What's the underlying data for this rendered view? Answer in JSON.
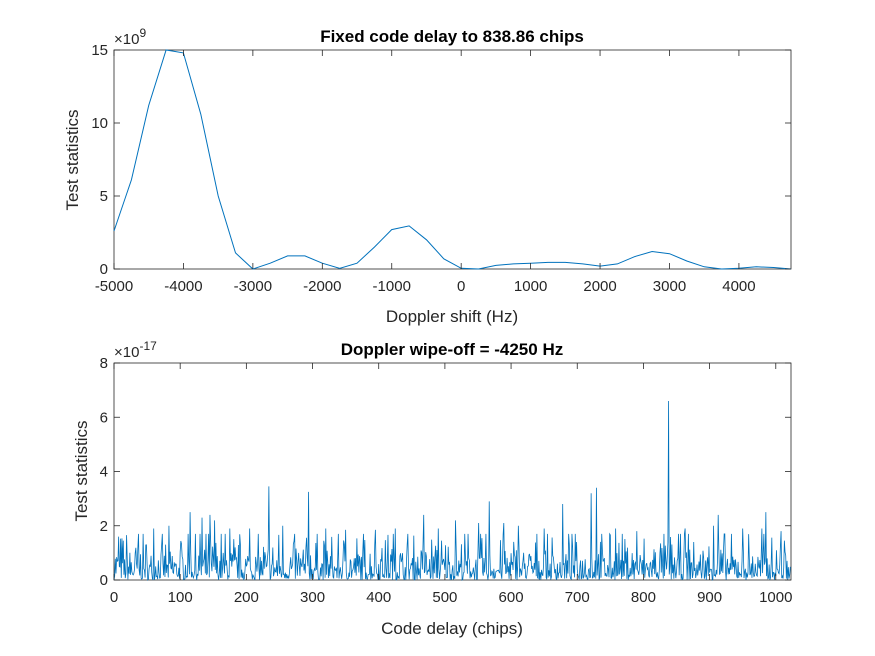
{
  "chart_data": [
    {
      "type": "line",
      "title": "Fixed code delay to 838.86 chips",
      "xlabel": "Doppler shift (Hz)",
      "ylabel": "Test statistics",
      "xlim": [
        -5000,
        4750
      ],
      "ylim": [
        0,
        15
      ],
      "y_exponent_base": "×10",
      "y_exponent": "9",
      "xticks": [
        -5000,
        -4000,
        -3000,
        -2000,
        -1000,
        0,
        1000,
        2000,
        3000,
        4000
      ],
      "yticks": [
        0,
        5,
        10,
        15
      ],
      "grid": false,
      "color": "#0072BD",
      "series": [
        {
          "x": [
            -5000,
            -4750,
            -4500,
            -4250,
            -4000,
            -3750,
            -3500,
            -3250,
            -3000,
            -2750,
            -2500,
            -2250,
            -2000,
            -1750,
            -1500,
            -1250,
            -1000,
            -750,
            -500,
            -250,
            0,
            250,
            500,
            750,
            1000,
            1250,
            1500,
            1750,
            2000,
            2250,
            2500,
            2750,
            3000,
            3250,
            3500,
            3750,
            4000,
            4250,
            4500,
            4750
          ],
          "values": [
            2.6,
            6.1,
            11.2,
            15.1,
            14.8,
            10.6,
            5.0,
            1.1,
            0.0,
            0.4,
            0.9,
            0.9,
            0.4,
            0.05,
            0.4,
            1.5,
            2.7,
            2.95,
            2.0,
            0.7,
            0.05,
            0.0,
            0.25,
            0.35,
            0.4,
            0.45,
            0.45,
            0.35,
            0.2,
            0.35,
            0.85,
            1.2,
            1.05,
            0.55,
            0.15,
            0.0,
            0.05,
            0.15,
            0.1,
            0.0
          ]
        }
      ]
    },
    {
      "type": "line",
      "title": "Doppler wipe-off = -4250 Hz",
      "xlabel": "Code delay (chips)",
      "ylabel": "Test statistics",
      "xlim": [
        0,
        1023
      ],
      "ylim": [
        0,
        8
      ],
      "y_exponent_base": "×10",
      "y_exponent": "-17",
      "xticks": [
        0,
        100,
        200,
        300,
        400,
        500,
        600,
        700,
        800,
        900,
        1000
      ],
      "yticks": [
        0,
        2,
        4,
        6,
        8
      ],
      "grid": false,
      "color": "#0072BD",
      "noise_mean": 0.6,
      "spikes": [
        {
          "x": 7,
          "y": 1.6
        },
        {
          "x": 37,
          "y": 1.7
        },
        {
          "x": 60,
          "y": 1.9
        },
        {
          "x": 83,
          "y": 2.0
        },
        {
          "x": 115,
          "y": 2.5
        },
        {
          "x": 133,
          "y": 2.3
        },
        {
          "x": 145,
          "y": 2.4
        },
        {
          "x": 152,
          "y": 2.2
        },
        {
          "x": 175,
          "y": 1.9
        },
        {
          "x": 205,
          "y": 1.9
        },
        {
          "x": 234,
          "y": 3.45
        },
        {
          "x": 255,
          "y": 2.0
        },
        {
          "x": 294,
          "y": 3.25
        },
        {
          "x": 320,
          "y": 1.9
        },
        {
          "x": 350,
          "y": 1.85
        },
        {
          "x": 395,
          "y": 1.85
        },
        {
          "x": 425,
          "y": 1.9
        },
        {
          "x": 468,
          "y": 2.4
        },
        {
          "x": 490,
          "y": 1.9
        },
        {
          "x": 516,
          "y": 2.2
        },
        {
          "x": 551,
          "y": 2.1
        },
        {
          "x": 567,
          "y": 2.9
        },
        {
          "x": 589,
          "y": 2.1
        },
        {
          "x": 611,
          "y": 2.0
        },
        {
          "x": 650,
          "y": 1.9
        },
        {
          "x": 678,
          "y": 2.8
        },
        {
          "x": 721,
          "y": 3.2
        },
        {
          "x": 729,
          "y": 3.4
        },
        {
          "x": 758,
          "y": 1.9
        },
        {
          "x": 790,
          "y": 1.8
        },
        {
          "x": 838,
          "y": 6.6
        },
        {
          "x": 863,
          "y": 1.9
        },
        {
          "x": 906,
          "y": 2.0
        },
        {
          "x": 913,
          "y": 2.4
        },
        {
          "x": 950,
          "y": 1.9
        },
        {
          "x": 979,
          "y": 1.9
        },
        {
          "x": 985,
          "y": 2.5
        },
        {
          "x": 1008,
          "y": 1.8
        }
      ]
    }
  ]
}
